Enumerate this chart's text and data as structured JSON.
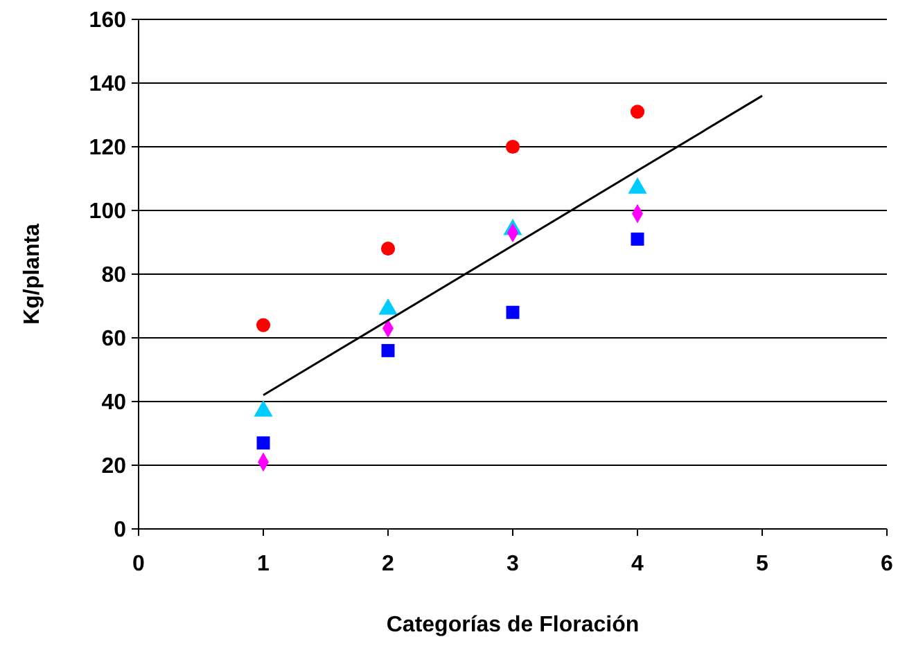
{
  "chart_data": {
    "type": "scatter",
    "xlabel": "Categorías de Floración",
    "ylabel": "Kg/planta",
    "x": [
      1,
      2,
      3,
      4
    ],
    "series": [
      {
        "color": "#ff0000",
        "marker": "circle",
        "values": [
          64,
          88,
          120,
          131
        ]
      },
      {
        "color": "#0000ff",
        "marker": "square",
        "values": [
          27,
          56,
          68,
          91
        ]
      },
      {
        "color": "#00ccff",
        "marker": "triangle",
        "values": [
          37,
          69,
          94,
          107
        ]
      },
      {
        "color": "#ff00ff",
        "marker": "diamond",
        "values": [
          21,
          63,
          93,
          99
        ]
      },
      {
        "type": "line",
        "color": "#000000",
        "marker": "none",
        "x": [
          1,
          5
        ],
        "values": [
          42,
          136
        ]
      }
    ],
    "xlim": [
      0,
      6
    ],
    "xticks": [
      0,
      1,
      2,
      3,
      4,
      5,
      6
    ],
    "ylim": [
      0,
      160
    ],
    "yticks": [
      0,
      20,
      40,
      60,
      80,
      100,
      120,
      140,
      160
    ],
    "grid": "y"
  }
}
